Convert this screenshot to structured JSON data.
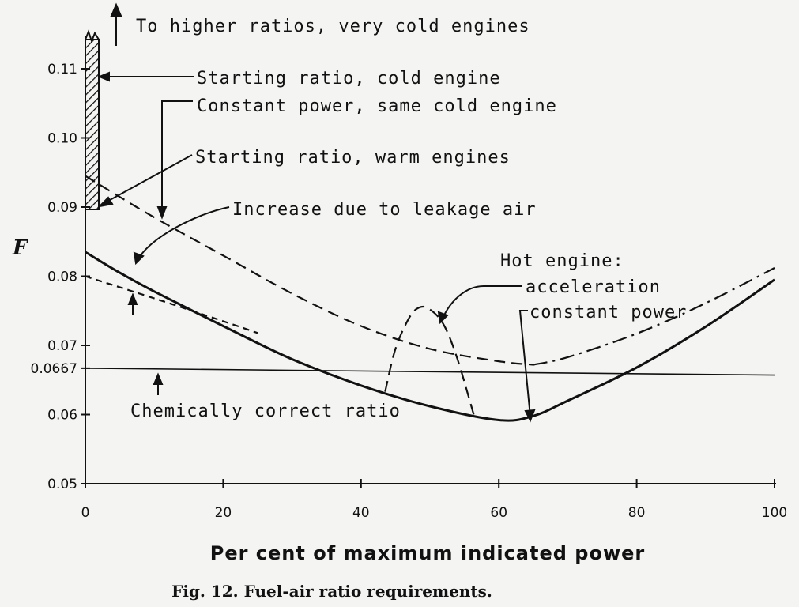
{
  "chart_data": {
    "type": "line",
    "caption": "Fig. 12. Fuel-air ratio requirements.",
    "xlabel": "Per cent of maximum indicated power",
    "ylabel": "F",
    "xlim": [
      0,
      100
    ],
    "ylim": [
      0.05,
      0.113
    ],
    "x_ticks": [
      "0",
      "20",
      "40",
      "60",
      "80",
      "100"
    ],
    "y_ticks": [
      {
        "label": "0.11",
        "value": 0.11
      },
      {
        "label": "0.10",
        "value": 0.1
      },
      {
        "label": "0.09",
        "value": 0.09
      },
      {
        "label": "0.08",
        "value": 0.08
      },
      {
        "label": "0.07",
        "value": 0.07
      },
      {
        "label": "0.0667",
        "value": 0.0667
      },
      {
        "label": "0.06",
        "value": 0.06
      },
      {
        "label": "0.05",
        "value": 0.05
      }
    ],
    "series": [
      {
        "name": "Hot engine: constant power",
        "style": "solid",
        "x": [
          0,
          5,
          10,
          20,
          30,
          40,
          50,
          60,
          65,
          70,
          80,
          90,
          100
        ],
        "y": [
          0.0835,
          0.0805,
          0.0778,
          0.0728,
          0.068,
          0.0642,
          0.0612,
          0.0592,
          0.0598,
          0.062,
          0.0668,
          0.0727,
          0.0795
        ]
      },
      {
        "name": "Constant power, same cold engine",
        "style": "dash",
        "x": [
          0,
          10,
          20,
          30,
          40,
          50,
          60,
          65
        ],
        "y": [
          0.0945,
          0.0885,
          0.083,
          0.0775,
          0.0728,
          0.0695,
          0.0677,
          0.0672
        ]
      },
      {
        "name": "Hot engine: acceleration",
        "style": "dash-dot",
        "x": [
          65,
          70,
          80,
          90,
          100
        ],
        "y": [
          0.0672,
          0.0683,
          0.0717,
          0.0761,
          0.0812
        ]
      },
      {
        "name": "Warm engine constant power (before leakage air)",
        "style": "short-dash",
        "x": [
          0,
          10,
          20,
          25
        ],
        "y": [
          0.08,
          0.0768,
          0.0735,
          0.0718
        ]
      },
      {
        "name": "Acceleration hump",
        "style": "dash",
        "x": [
          43.5,
          45,
          47,
          48.5,
          50,
          52,
          54,
          56.5
        ],
        "y": [
          0.0633,
          0.0695,
          0.074,
          0.0755,
          0.0752,
          0.073,
          0.068,
          0.0595
        ]
      },
      {
        "name": "Chemically correct ratio",
        "style": "thin",
        "x": [
          0,
          100
        ],
        "y": [
          0.0667,
          0.0657
        ]
      }
    ],
    "band": {
      "name": "Starting ratio, cold engine",
      "x": [
        0,
        2
      ],
      "y": [
        0.09,
        0.114
      ]
    },
    "annotations": {
      "higher": "To higher ratios, very cold engines",
      "start_cold": "Starting ratio, cold engine",
      "const_cold": "Constant  power, same cold engine",
      "start_warm": "Starting ratio, warm engines",
      "leakage": "Increase  due  to  leakage  air",
      "hot": "Hot  engine:",
      "accel": "acceleration",
      "constp": "constant power",
      "chem": "Chemically  correct  ratio"
    }
  }
}
